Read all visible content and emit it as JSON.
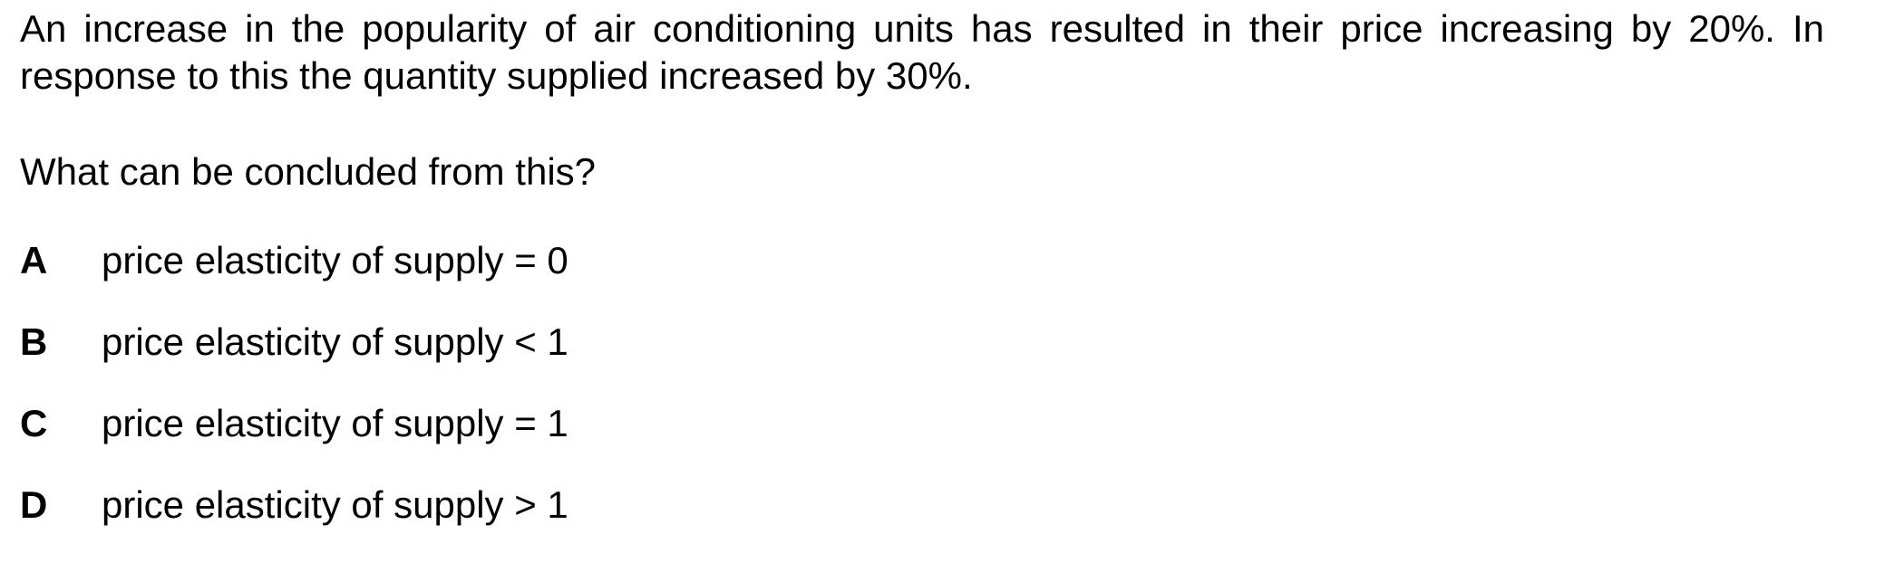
{
  "question": {
    "stem": "An increase in the popularity of air conditioning units has resulted in their price increasing by 20%. In response to this the quantity supplied increased by 30%.",
    "prompt": "What can be concluded from this?",
    "options": [
      {
        "letter": "A",
        "text": "price elasticity of supply = 0"
      },
      {
        "letter": "B",
        "text": "price elasticity of supply < 1"
      },
      {
        "letter": "C",
        "text": "price elasticity of supply = 1"
      },
      {
        "letter": "D",
        "text": "price elasticity of supply > 1"
      }
    ]
  }
}
